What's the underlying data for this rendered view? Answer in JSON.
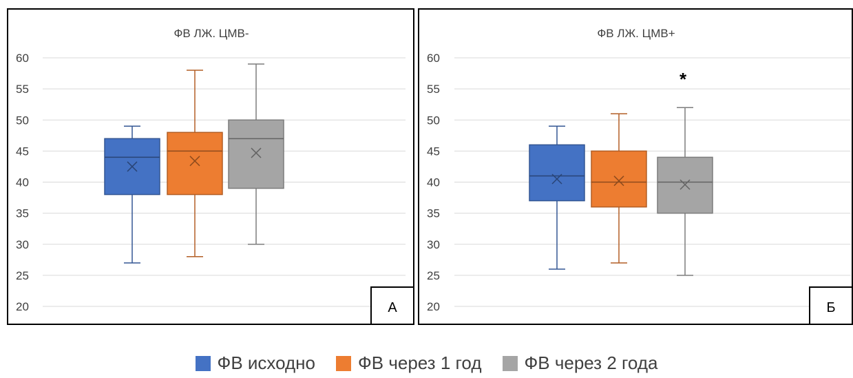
{
  "colors": {
    "baseline": "#4472C4",
    "year1": "#ED7D31",
    "year2": "#A5A5A5"
  },
  "legend": {
    "items": [
      {
        "label": "ФВ исходно",
        "color": "#4472C4"
      },
      {
        "label": "ФВ через 1 год",
        "color": "#ED7D31"
      },
      {
        "label": "ФВ через 2 года",
        "color": "#A5A5A5"
      }
    ]
  },
  "chart_data": [
    {
      "type": "box",
      "title": "ФВ ЛЖ. ЦМВ-",
      "panel_label": "А",
      "ylim": [
        20,
        60
      ],
      "yticks": [
        20,
        25,
        30,
        35,
        40,
        45,
        50,
        55,
        60
      ],
      "grid": true,
      "annotation": "",
      "series": [
        {
          "name": "ФВ исходно",
          "min": 27,
          "q1": 38,
          "median": 44,
          "q3": 47,
          "max": 49,
          "mean": 42.5
        },
        {
          "name": "ФВ через 1 год",
          "min": 28,
          "q1": 38,
          "median": 45,
          "q3": 48,
          "max": 58,
          "mean": 43.4
        },
        {
          "name": "ФВ через 2 года",
          "min": 30,
          "q1": 39,
          "median": 47,
          "q3": 50,
          "max": 59,
          "mean": 44.7
        }
      ]
    },
    {
      "type": "box",
      "title": "ФВ ЛЖ. ЦМВ+",
      "panel_label": "Б",
      "ylim": [
        20,
        60
      ],
      "yticks": [
        20,
        25,
        30,
        35,
        40,
        45,
        50,
        55,
        60
      ],
      "grid": true,
      "annotation": "*",
      "series": [
        {
          "name": "ФВ исходно",
          "min": 26,
          "q1": 37,
          "median": 41,
          "q3": 46,
          "max": 49,
          "mean": 40.5
        },
        {
          "name": "ФВ через 1 год",
          "min": 27,
          "q1": 36,
          "median": 40,
          "q3": 45,
          "max": 51,
          "mean": 40.2
        },
        {
          "name": "ФВ через 2 года",
          "min": 25,
          "q1": 35,
          "median": 40,
          "q3": 44,
          "max": 52,
          "mean": 39.6
        }
      ]
    }
  ]
}
